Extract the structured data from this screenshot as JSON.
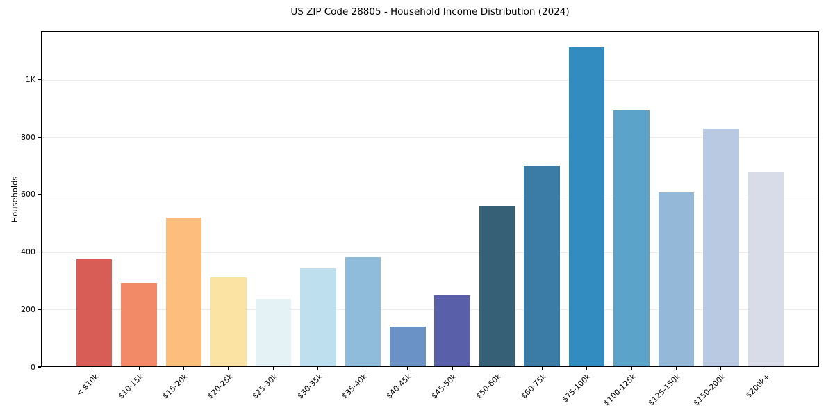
{
  "chart_data": {
    "type": "bar",
    "title": "US ZIP Code 28805 - Household Income Distribution (2024)",
    "xlabel": "",
    "ylabel": "Households",
    "categories": [
      "< $10k",
      "$10-15k",
      "$15-20k",
      "$20-25k",
      "$25-30k",
      "$30-35k",
      "$35-40k",
      "$40-45k",
      "$45-50k",
      "$50-60k",
      "$60-75k",
      "$75-100k",
      "$100-125k",
      "$125-150k",
      "$150-200k",
      "$200k+"
    ],
    "values": [
      375,
      292,
      520,
      313,
      236,
      343,
      381,
      140,
      249,
      560,
      700,
      1112,
      893,
      608,
      830,
      676
    ],
    "bar_colors": [
      "#d75d56",
      "#f28a68",
      "#fcbd7d",
      "#fbe3a3",
      "#e4f1f5",
      "#bedfed",
      "#90bcdc",
      "#6b92c6",
      "#5a5fa9",
      "#366076",
      "#3a7ca5",
      "#338cc0",
      "#5ba3c9",
      "#93b8d8",
      "#b9c9e2",
      "#d8dbe8"
    ],
    "ylim": [
      0,
      1168
    ],
    "yticks": [
      {
        "value": 0,
        "label": "0"
      },
      {
        "value": 200,
        "label": "200"
      },
      {
        "value": 400,
        "label": "400"
      },
      {
        "value": 600,
        "label": "600"
      },
      {
        "value": 800,
        "label": "800"
      },
      {
        "value": 1000,
        "label": "1K"
      }
    ],
    "gridline_values": [
      200,
      400,
      600,
      800,
      1000
    ],
    "grid": true,
    "legend": false,
    "bar_width_fraction": 0.8
  },
  "colors": {
    "background": "#ffffff",
    "grid": "#ebebeb",
    "spine": "#000000",
    "text": "#000000"
  }
}
